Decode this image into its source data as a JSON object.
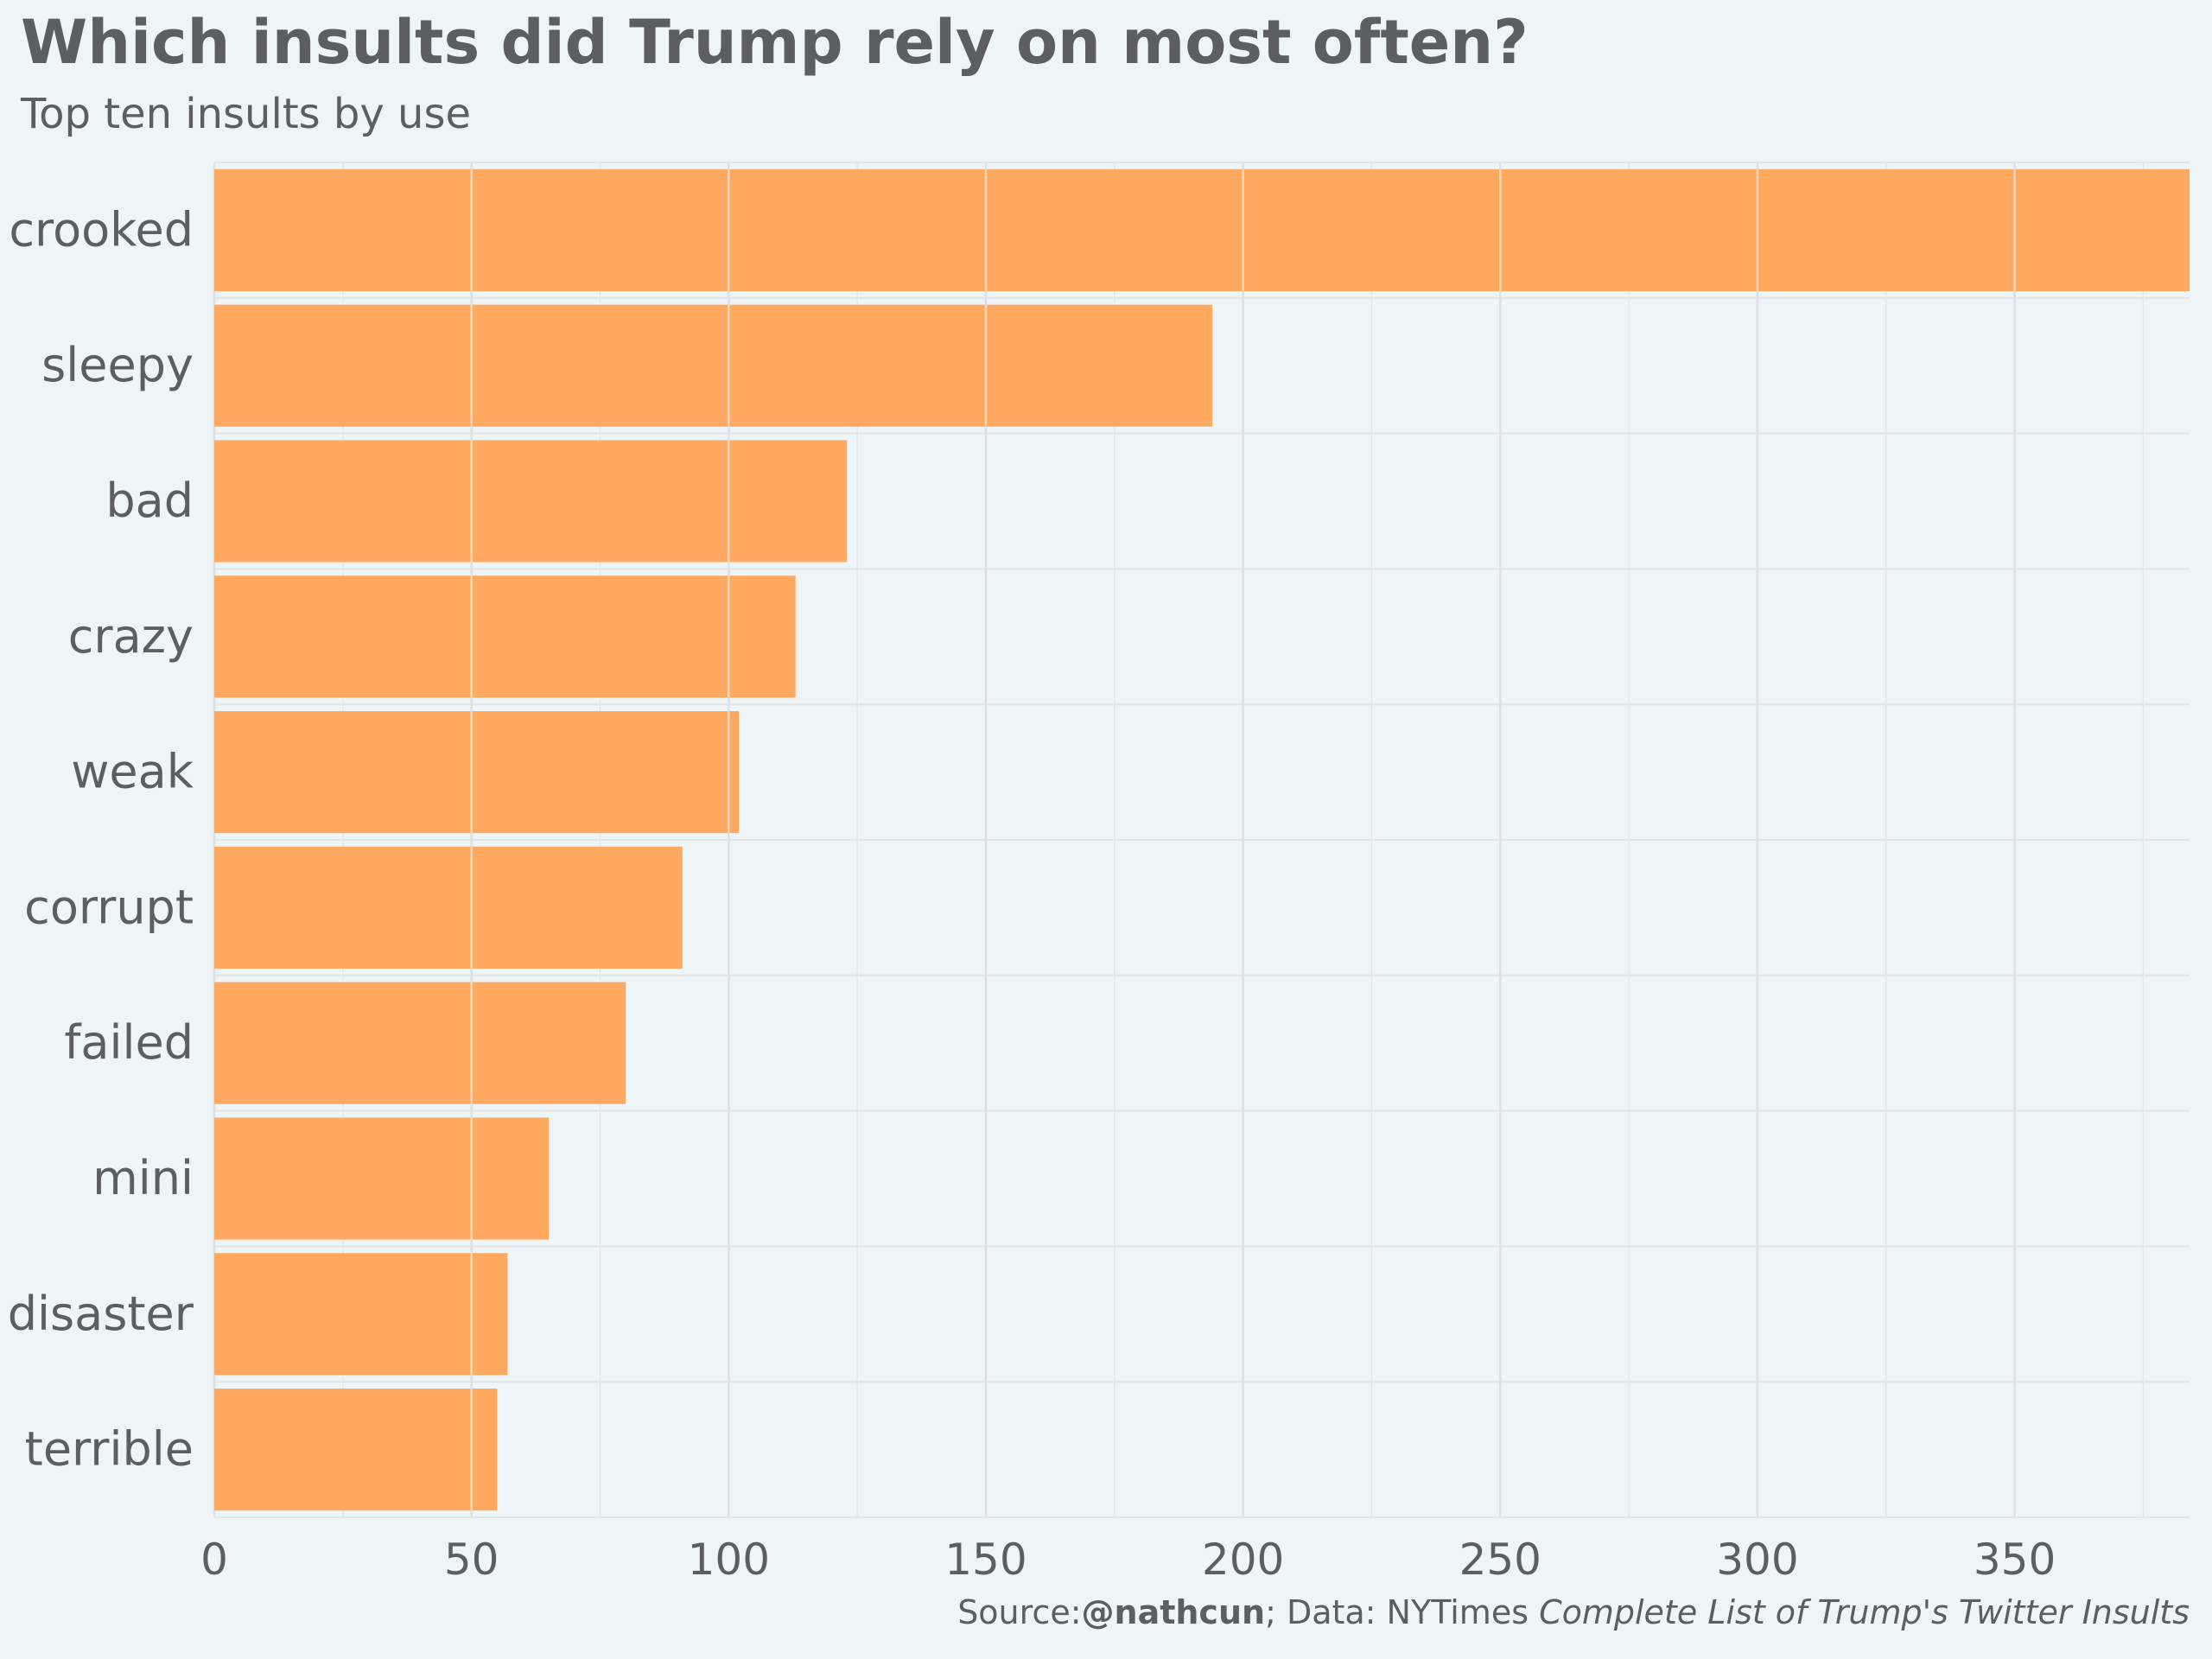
{
  "title": "Which insults did Trump rely on most often?",
  "subtitle": "Top ten insults by use",
  "caption": {
    "source_prefix": "Source:",
    "source_handle": "@nathcun",
    "data_prefix": "; Data: NYTimes ",
    "data_title": "Complete List of Trump's Twitter Insults"
  },
  "colors": {
    "background": "#eef5f8",
    "bar": "#ffa85f",
    "text": "#5b5f62"
  },
  "chart_data": {
    "type": "bar",
    "orientation": "horizontal",
    "categories": [
      "crooked",
      "sleepy",
      "bad",
      "crazy",
      "weak",
      "corrupt",
      "failed",
      "mini",
      "disaster",
      "terrible"
    ],
    "values": [
      384,
      194,
      123,
      113,
      102,
      91,
      80,
      65,
      57,
      55
    ],
    "title": "Which insults did Trump rely on most often?",
    "subtitle": "Top ten insults by use",
    "xlabel": "",
    "ylabel": "",
    "xlim": [
      0,
      384
    ],
    "xticks": [
      0,
      50,
      100,
      150,
      200,
      250,
      300,
      350
    ],
    "grid": true,
    "legend": "none"
  }
}
